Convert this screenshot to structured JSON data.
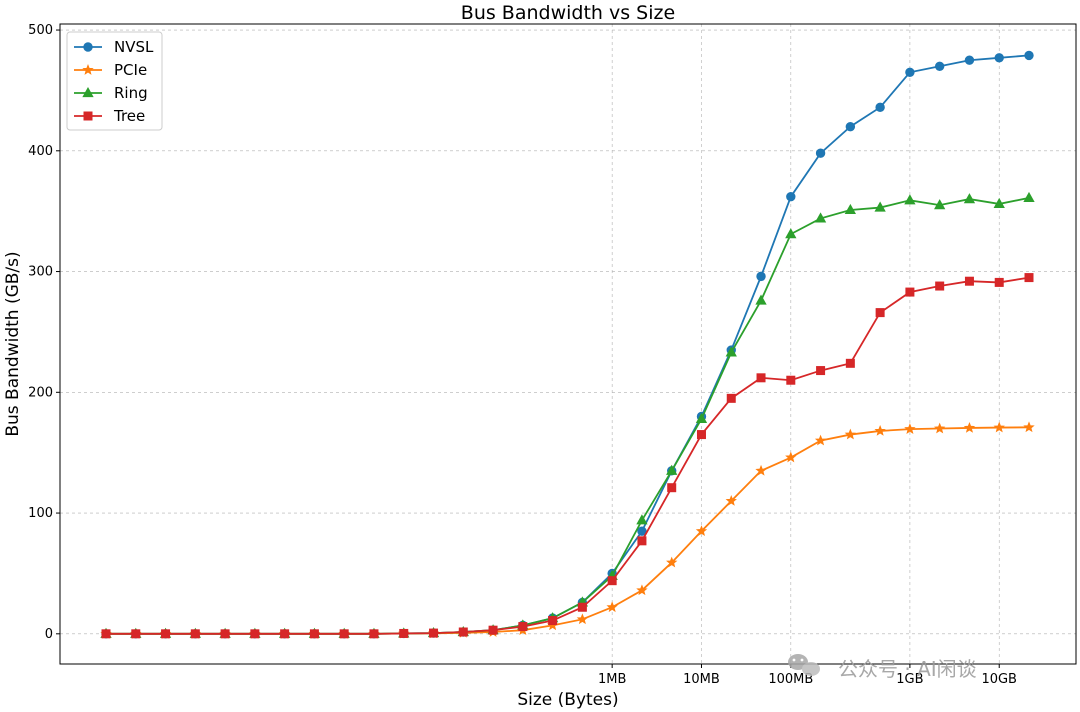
{
  "chart_data": {
    "type": "line",
    "title": "Bus Bandwidth vs Size",
    "xlabel": "Size (Bytes)",
    "ylabel": "Bus Bandwidth (GB/s)",
    "x_scale": "log2",
    "x_count": 32,
    "x_tick_labels": [
      {
        "index": 17,
        "label": "1MB"
      },
      {
        "index": 20,
        "label": "10MB"
      },
      {
        "index": 23,
        "label": "100MB"
      },
      {
        "index": 27,
        "label": "1GB"
      },
      {
        "index": 30,
        "label": "10GB"
      }
    ],
    "y_ticks": [
      0,
      100,
      200,
      300,
      400,
      500
    ],
    "ylim": [
      -25,
      505
    ],
    "grid": true,
    "legend_position": "top-left",
    "series": [
      {
        "name": "NVSL",
        "color": "#1f77b4",
        "marker": "circle",
        "values": [
          0,
          0,
          0,
          0,
          0,
          0,
          0,
          0,
          0,
          0,
          0.3,
          0.6,
          1.5,
          3,
          7,
          13,
          26,
          50,
          85,
          135,
          180,
          235,
          296,
          362,
          398,
          420,
          436,
          465,
          470,
          475,
          477,
          479
        ]
      },
      {
        "name": "PCIe",
        "color": "#ff7f0e",
        "marker": "star",
        "values": [
          0,
          0,
          0,
          0,
          0,
          0,
          0,
          0,
          0,
          0,
          0.2,
          0.4,
          0.8,
          1.5,
          3,
          7,
          12,
          22,
          36,
          59,
          85,
          110,
          135,
          146,
          160,
          165,
          168,
          169.5,
          170,
          170.5,
          170.8,
          171
        ]
      },
      {
        "name": "Ring",
        "color": "#2ca02c",
        "marker": "triangle",
        "values": [
          0,
          0,
          0,
          0,
          0,
          0,
          0,
          0,
          0,
          0,
          0.3,
          0.6,
          1.5,
          3,
          7,
          13,
          26,
          48,
          94,
          135,
          178,
          233,
          276,
          331,
          344,
          351,
          353,
          359,
          355,
          360,
          356,
          361
        ]
      },
      {
        "name": "Tree",
        "color": "#d62728",
        "marker": "square",
        "values": [
          0,
          0,
          0,
          0,
          0,
          0,
          0,
          0,
          0,
          0,
          0.3,
          0.6,
          1.5,
          3,
          6,
          11,
          22,
          44,
          77,
          121,
          165,
          195,
          212,
          210,
          218,
          224,
          266,
          283,
          288,
          292,
          291,
          295
        ]
      }
    ]
  },
  "watermark": {
    "icon": "wechat-icon",
    "text": "公众号 · AI闲谈"
  }
}
